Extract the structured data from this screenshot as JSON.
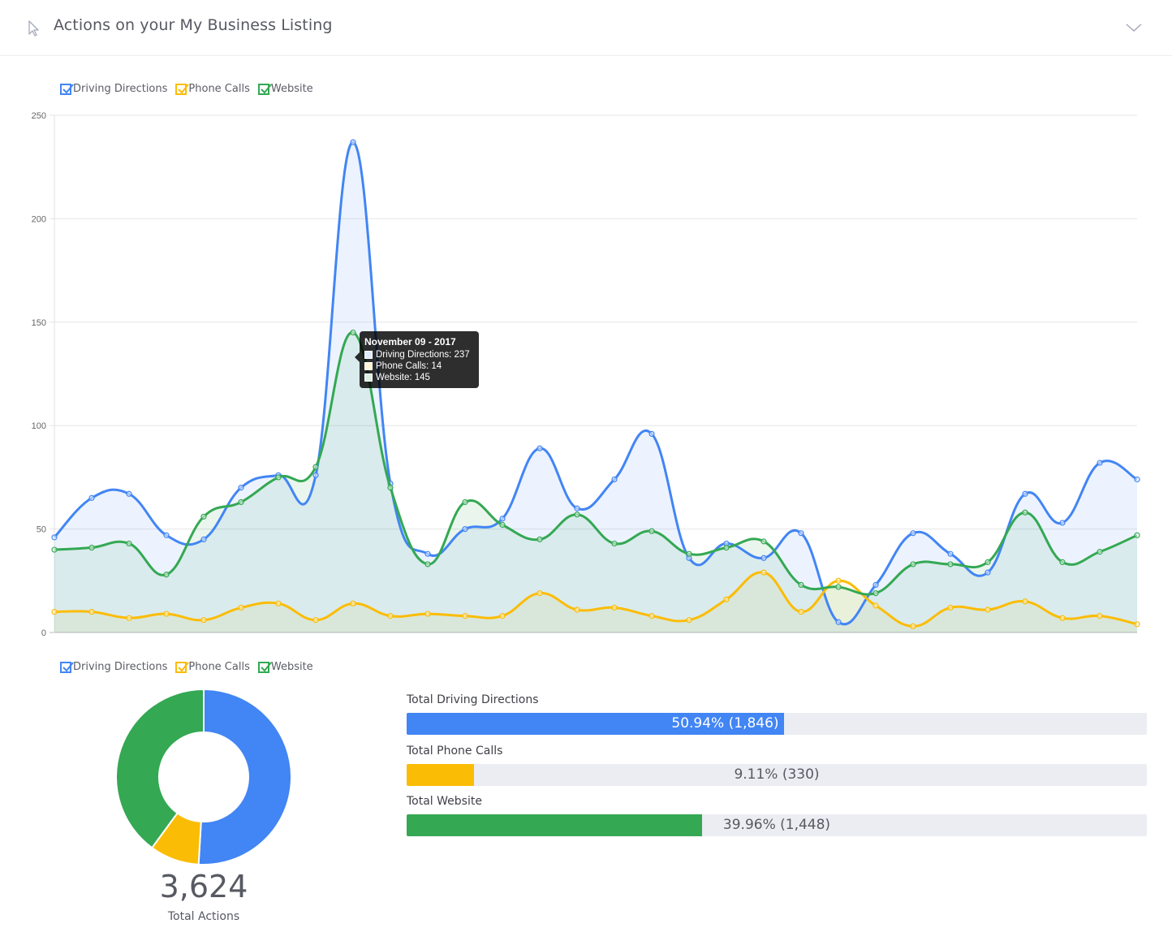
{
  "header": {
    "title": "Actions on your My Business Listing",
    "cursor_icon": "cursor-arrow-icon",
    "toggle_icon": "chevron-down-icon"
  },
  "colors": {
    "driving": "#4285f4",
    "phone": "#fbbc05",
    "website": "#34a853"
  },
  "legend_top": [
    {
      "label": "Driving Directions",
      "color": "#4285f4"
    },
    {
      "label": "Phone Calls",
      "color": "#fbbc05"
    },
    {
      "label": "Website",
      "color": "#34a853"
    }
  ],
  "legend_bottom": [
    {
      "label": "Driving Directions",
      "color": "#4285f4"
    },
    {
      "label": "Phone Calls",
      "color": "#fbbc05"
    },
    {
      "label": "Website",
      "color": "#34a853"
    }
  ],
  "tooltip": {
    "title": "November 09 - 2017",
    "rows": [
      "Driving Directions: 237",
      "Phone Calls: 14",
      "Website: 145"
    ]
  },
  "chart_data": [
    {
      "type": "line",
      "title": "",
      "xlabel": "",
      "ylabel": "",
      "ylim": [
        0,
        250
      ],
      "yticks": [
        0,
        50,
        100,
        150,
        200,
        250
      ],
      "grid": true,
      "legend": "top-left",
      "series": [
        {
          "name": "Driving Directions",
          "color": "#4285f4",
          "values": [
            46,
            65,
            67,
            47,
            45,
            70,
            76,
            76,
            237,
            72,
            38,
            50,
            55,
            89,
            60,
            74,
            96,
            36,
            43,
            36,
            48,
            5,
            23,
            48,
            38,
            29,
            67,
            53,
            82,
            74
          ]
        },
        {
          "name": "Phone Calls",
          "color": "#fbbc05",
          "values": [
            10,
            10,
            7,
            9,
            6,
            12,
            14,
            6,
            14,
            8,
            9,
            8,
            8,
            19,
            11,
            12,
            8,
            6,
            16,
            29,
            10,
            25,
            13,
            3,
            12,
            11,
            15,
            7,
            8,
            4
          ]
        },
        {
          "name": "Website",
          "color": "#34a853",
          "values": [
            40,
            41,
            43,
            28,
            56,
            63,
            75,
            80,
            145,
            70,
            33,
            63,
            52,
            45,
            57,
            43,
            49,
            38,
            41,
            44,
            23,
            22,
            19,
            33,
            33,
            34,
            58,
            34,
            39,
            47
          ]
        }
      ]
    },
    {
      "type": "pie",
      "categories": [
        "Driving Directions",
        "Phone Calls",
        "Website"
      ],
      "values": [
        1846,
        330,
        1448
      ],
      "colors": [
        "#4285f4",
        "#fbbc05",
        "#34a853"
      ]
    }
  ],
  "totals": {
    "value": "3,624",
    "label": "Total Actions"
  },
  "bars": [
    {
      "label": "Total Driving Directions",
      "text": "50.94% (1,846)",
      "fraction": 0.5094,
      "color": "#4285f4"
    },
    {
      "label": "Total Phone Calls",
      "text": "9.11% (330)",
      "fraction": 0.0911,
      "color": "#fbbc05"
    },
    {
      "label": "Total Website",
      "text": "39.96% (1,448)",
      "fraction": 0.3996,
      "color": "#34a853"
    }
  ]
}
